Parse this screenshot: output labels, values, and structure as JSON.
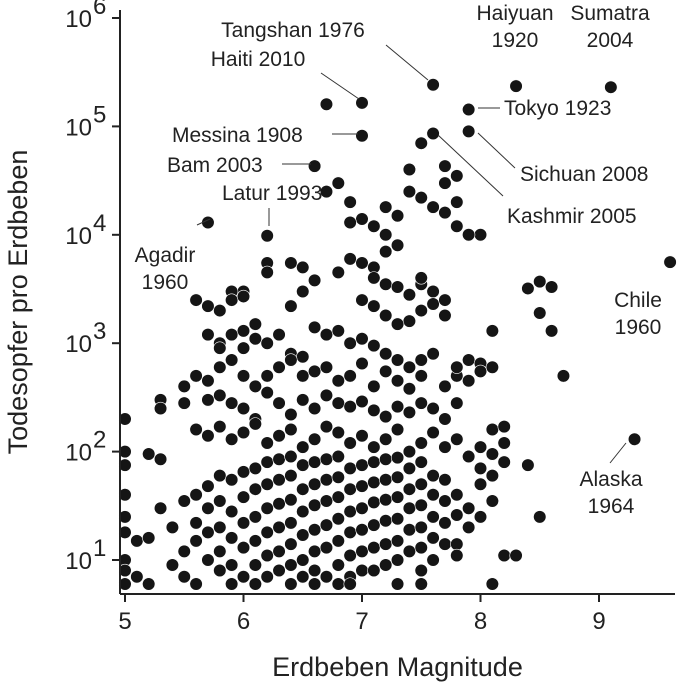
{
  "chart_data": {
    "type": "scatter",
    "xlabel": "Erdbeben Magnitude",
    "ylabel": "Todesopfer pro Erdbeben",
    "xlim": [
      4.97,
      9.62
    ],
    "ylim": [
      5,
      1000000
    ],
    "y_scale": "log",
    "grid": false,
    "x_ticks": [
      "5",
      "6",
      "7",
      "8",
      "9"
    ],
    "y_ticks": [
      {
        "base": "10",
        "exp": "1",
        "value": 10
      },
      {
        "base": "10",
        "exp": "2",
        "value": 100
      },
      {
        "base": "10",
        "exp": "3",
        "value": 1000
      },
      {
        "base": "10",
        "exp": "4",
        "value": 10000
      },
      {
        "base": "10",
        "exp": "5",
        "value": 100000
      },
      {
        "base": "10",
        "exp": "6",
        "value": 1000000
      }
    ],
    "annotations": [
      {
        "lines": [
          "Tangshan 1976"
        ],
        "x": 7.6,
        "y": 242000
      },
      {
        "lines": [
          "Haiyuan",
          "1920"
        ],
        "x": 8.3,
        "y": 235000
      },
      {
        "lines": [
          "Sumatra",
          "2004"
        ],
        "x": 9.1,
        "y": 230000
      },
      {
        "lines": [
          "Haiti 2010"
        ],
        "x": 7.0,
        "y": 160000
      },
      {
        "lines": [
          "Tokyo 1923"
        ],
        "x": 7.9,
        "y": 143000
      },
      {
        "lines": [
          "Messina 1908"
        ],
        "x": 7.0,
        "y": 82000
      },
      {
        "lines": [
          "Sichuan 2008"
        ],
        "x": 7.9,
        "y": 87000
      },
      {
        "lines": [
          "Bam 2003"
        ],
        "x": 6.6,
        "y": 43000
      },
      {
        "lines": [
          "Kashmir 2005"
        ],
        "x": 7.6,
        "y": 86000
      },
      {
        "lines": [
          "Latur 1993"
        ],
        "x": 6.2,
        "y": 9800
      },
      {
        "lines": [
          "Agadir",
          "1960"
        ],
        "x": 5.7,
        "y": 13000
      },
      {
        "lines": [
          "Chile",
          "1960"
        ],
        "x": 9.6,
        "y": 5600
      },
      {
        "lines": [
          "Alaska",
          "1964"
        ],
        "x": 9.3,
        "y": 130
      }
    ],
    "points": [
      [
        9.1,
        230000
      ],
      [
        8.3,
        235000
      ],
      [
        7.6,
        242000
      ],
      [
        7.0,
        165000
      ],
      [
        6.7,
        160000
      ],
      [
        7.9,
        143000
      ],
      [
        7.9,
        90000
      ],
      [
        7.6,
        86000
      ],
      [
        7.0,
        82000
      ],
      [
        6.6,
        43000
      ],
      [
        5.7,
        13000
      ],
      [
        6.2,
        9800
      ],
      [
        9.6,
        5600
      ],
      [
        9.3,
        130
      ],
      [
        7.5,
        70000
      ],
      [
        7.4,
        40000
      ],
      [
        7.7,
        43000
      ],
      [
        7.7,
        30000
      ],
      [
        7.8,
        35000
      ],
      [
        7.4,
        25000
      ],
      [
        7.5,
        22000
      ],
      [
        7.6,
        18000
      ],
      [
        7.7,
        16000
      ],
      [
        7.8,
        20000
      ],
      [
        6.8,
        30000
      ],
      [
        6.7,
        25000
      ],
      [
        6.9,
        20000
      ],
      [
        7.0,
        14000
      ],
      [
        6.9,
        13000
      ],
      [
        7.2,
        18000
      ],
      [
        7.3,
        15000
      ],
      [
        7.1,
        12000
      ],
      [
        7.2,
        10000
      ],
      [
        7.3,
        8000
      ],
      [
        7.2,
        7000
      ],
      [
        8.0,
        10000
      ],
      [
        7.9,
        10000
      ],
      [
        7.8,
        12000
      ],
      [
        6.9,
        6000
      ],
      [
        7.0,
        5500
      ],
      [
        7.1,
        5000
      ],
      [
        7.1,
        4000
      ],
      [
        7.2,
        3500
      ],
      [
        7.3,
        3300
      ],
      [
        7.4,
        2800
      ],
      [
        7.5,
        3500
      ],
      [
        7.5,
        4000
      ],
      [
        7.6,
        3000
      ],
      [
        7.6,
        2300
      ],
      [
        7.5,
        2000
      ],
      [
        7.4,
        1600
      ],
      [
        7.3,
        1500
      ],
      [
        7.2,
        1800
      ],
      [
        7.1,
        2200
      ],
      [
        7.0,
        2500
      ],
      [
        6.8,
        4500
      ],
      [
        6.6,
        3800
      ],
      [
        6.5,
        3000
      ],
      [
        6.4,
        2200
      ],
      [
        6.4,
        5500
      ],
      [
        6.5,
        5000
      ],
      [
        6.2,
        5500
      ],
      [
        6.2,
        4500
      ],
      [
        6.0,
        3000
      ],
      [
        5.9,
        3000
      ],
      [
        5.9,
        2500
      ],
      [
        6.0,
        2700
      ],
      [
        5.8,
        2000
      ],
      [
        5.7,
        2200
      ],
      [
        5.6,
        2500
      ],
      [
        7.7,
        1800
      ],
      [
        7.7,
        2500
      ],
      [
        8.1,
        1300
      ],
      [
        8.4,
        3200
      ],
      [
        8.5,
        3700
      ],
      [
        8.6,
        3300
      ],
      [
        8.5,
        1900
      ],
      [
        8.6,
        1300
      ],
      [
        8.7,
        500
      ],
      [
        6.1,
        1500
      ],
      [
        6.0,
        1300
      ],
      [
        5.9,
        1200
      ],
      [
        5.8,
        1000
      ],
      [
        5.7,
        1200
      ],
      [
        5.8,
        900
      ],
      [
        6.0,
        900
      ],
      [
        6.1,
        1100
      ],
      [
        6.2,
        1000
      ],
      [
        6.3,
        1200
      ],
      [
        6.4,
        800
      ],
      [
        6.5,
        750
      ],
      [
        6.6,
        1400
      ],
      [
        6.7,
        1200
      ],
      [
        6.8,
        1300
      ],
      [
        6.9,
        1000
      ],
      [
        7.0,
        1100
      ],
      [
        7.1,
        950
      ],
      [
        7.2,
        800
      ],
      [
        7.3,
        700
      ],
      [
        7.4,
        600
      ],
      [
        7.5,
        700
      ],
      [
        7.6,
        800
      ],
      [
        7.9,
        700
      ],
      [
        8.0,
        650
      ],
      [
        8.1,
        600
      ],
      [
        7.8,
        500
      ],
      [
        7.8,
        600
      ],
      [
        5.6,
        500
      ],
      [
        5.5,
        400
      ],
      [
        5.7,
        450
      ],
      [
        5.8,
        600
      ],
      [
        5.9,
        700
      ],
      [
        6.0,
        500
      ],
      [
        6.1,
        400
      ],
      [
        6.2,
        500
      ],
      [
        6.3,
        600
      ],
      [
        6.4,
        700
      ],
      [
        6.5,
        500
      ],
      [
        6.6,
        550
      ],
      [
        6.7,
        600
      ],
      [
        6.8,
        450
      ],
      [
        6.9,
        500
      ],
      [
        7.0,
        650
      ],
      [
        7.1,
        400
      ],
      [
        7.2,
        550
      ],
      [
        7.3,
        450
      ],
      [
        7.4,
        380
      ],
      [
        7.5,
        500
      ],
      [
        7.7,
        400
      ],
      [
        7.9,
        450
      ],
      [
        8.0,
        550
      ],
      [
        5.3,
        300
      ],
      [
        5.3,
        250
      ],
      [
        5.5,
        280
      ],
      [
        5.7,
        300
      ],
      [
        5.8,
        330
      ],
      [
        5.9,
        280
      ],
      [
        6.0,
        250
      ],
      [
        6.1,
        200
      ],
      [
        6.2,
        350
      ],
      [
        6.3,
        280
      ],
      [
        6.4,
        220
      ],
      [
        6.5,
        300
      ],
      [
        6.6,
        250
      ],
      [
        6.7,
        330
      ],
      [
        6.8,
        280
      ],
      [
        6.9,
        260
      ],
      [
        7.0,
        290
      ],
      [
        7.1,
        240
      ],
      [
        7.2,
        210
      ],
      [
        7.3,
        260
      ],
      [
        7.4,
        230
      ],
      [
        7.5,
        280
      ],
      [
        7.6,
        250
      ],
      [
        7.7,
        200
      ],
      [
        7.8,
        280
      ],
      [
        8.1,
        160
      ],
      [
        8.2,
        170
      ],
      [
        8.2,
        120
      ],
      [
        5.0,
        200
      ],
      [
        5.0,
        100
      ],
      [
        5.0,
        75
      ],
      [
        5.2,
        95
      ],
      [
        5.3,
        85
      ],
      [
        5.6,
        160
      ],
      [
        5.7,
        140
      ],
      [
        5.8,
        170
      ],
      [
        5.9,
        130
      ],
      [
        6.0,
        150
      ],
      [
        6.1,
        180
      ],
      [
        6.2,
        120
      ],
      [
        6.3,
        140
      ],
      [
        6.4,
        160
      ],
      [
        6.5,
        110
      ],
      [
        6.6,
        130
      ],
      [
        6.7,
        170
      ],
      [
        6.8,
        150
      ],
      [
        6.9,
        120
      ],
      [
        7.0,
        140
      ],
      [
        7.1,
        110
      ],
      [
        7.2,
        130
      ],
      [
        7.3,
        160
      ],
      [
        7.4,
        100
      ],
      [
        7.5,
        120
      ],
      [
        7.6,
        150
      ],
      [
        7.7,
        110
      ],
      [
        7.8,
        130
      ],
      [
        7.9,
        90
      ],
      [
        8.0,
        110
      ],
      [
        8.1,
        95
      ],
      [
        8.2,
        80
      ],
      [
        8.0,
        70
      ],
      [
        8.4,
        75
      ],
      [
        5.0,
        40
      ],
      [
        5.0,
        25
      ],
      [
        5.0,
        18
      ],
      [
        5.0,
        10
      ],
      [
        5.0,
        8
      ],
      [
        5.0,
        6
      ],
      [
        5.1,
        7
      ],
      [
        5.1,
        15
      ],
      [
        5.2,
        6
      ],
      [
        5.2,
        16
      ],
      [
        5.3,
        30
      ],
      [
        5.4,
        20
      ],
      [
        5.4,
        9
      ],
      [
        5.5,
        35
      ],
      [
        5.5,
        12
      ],
      [
        5.5,
        7
      ],
      [
        5.6,
        40
      ],
      [
        5.6,
        22
      ],
      [
        5.6,
        15
      ],
      [
        5.6,
        6
      ],
      [
        5.7,
        48
      ],
      [
        5.7,
        30
      ],
      [
        5.7,
        18
      ],
      [
        5.7,
        10
      ],
      [
        5.8,
        60
      ],
      [
        5.8,
        35
      ],
      [
        5.8,
        20
      ],
      [
        5.8,
        12
      ],
      [
        5.8,
        8
      ],
      [
        5.9,
        55
      ],
      [
        5.9,
        28
      ],
      [
        5.9,
        16
      ],
      [
        5.9,
        9
      ],
      [
        5.9,
        6
      ],
      [
        6.0,
        65
      ],
      [
        6.0,
        38
      ],
      [
        6.0,
        22
      ],
      [
        6.0,
        13
      ],
      [
        6.0,
        7
      ],
      [
        6.1,
        70
      ],
      [
        6.1,
        45
      ],
      [
        6.1,
        25
      ],
      [
        6.1,
        15
      ],
      [
        6.1,
        9
      ],
      [
        6.1,
        6
      ],
      [
        6.2,
        80
      ],
      [
        6.2,
        50
      ],
      [
        6.2,
        30
      ],
      [
        6.2,
        18
      ],
      [
        6.2,
        11
      ],
      [
        6.2,
        7
      ],
      [
        6.3,
        85
      ],
      [
        6.3,
        55
      ],
      [
        6.3,
        33
      ],
      [
        6.3,
        20
      ],
      [
        6.3,
        12
      ],
      [
        6.3,
        8
      ],
      [
        6.4,
        90
      ],
      [
        6.4,
        60
      ],
      [
        6.4,
        36
      ],
      [
        6.4,
        22
      ],
      [
        6.4,
        14
      ],
      [
        6.4,
        9
      ],
      [
        6.4,
        6
      ],
      [
        6.5,
        75
      ],
      [
        6.5,
        45
      ],
      [
        6.5,
        28
      ],
      [
        6.5,
        17
      ],
      [
        6.5,
        10
      ],
      [
        6.5,
        7
      ],
      [
        6.6,
        80
      ],
      [
        6.6,
        50
      ],
      [
        6.6,
        32
      ],
      [
        6.6,
        19
      ],
      [
        6.6,
        12
      ],
      [
        6.6,
        8
      ],
      [
        6.7,
        85
      ],
      [
        6.7,
        55
      ],
      [
        6.7,
        35
      ],
      [
        6.7,
        21
      ],
      [
        6.7,
        13
      ],
      [
        6.7,
        7
      ],
      [
        6.8,
        90
      ],
      [
        6.8,
        58
      ],
      [
        6.8,
        38
      ],
      [
        6.8,
        24
      ],
      [
        6.8,
        15
      ],
      [
        6.8,
        9
      ],
      [
        6.8,
        6
      ],
      [
        6.9,
        70
      ],
      [
        6.9,
        45
      ],
      [
        6.9,
        28
      ],
      [
        6.9,
        18
      ],
      [
        6.9,
        11
      ],
      [
        6.9,
        7
      ],
      [
        7.0,
        75
      ],
      [
        7.0,
        48
      ],
      [
        7.0,
        30
      ],
      [
        7.0,
        19
      ],
      [
        7.0,
        12
      ],
      [
        7.0,
        8
      ],
      [
        7.1,
        80
      ],
      [
        7.1,
        52
      ],
      [
        7.1,
        34
      ],
      [
        7.1,
        21
      ],
      [
        7.1,
        13
      ],
      [
        7.1,
        8
      ],
      [
        7.2,
        85
      ],
      [
        7.2,
        55
      ],
      [
        7.2,
        36
      ],
      [
        7.2,
        23
      ],
      [
        7.2,
        14
      ],
      [
        7.2,
        9
      ],
      [
        7.3,
        88
      ],
      [
        7.3,
        58
      ],
      [
        7.3,
        38
      ],
      [
        7.3,
        24
      ],
      [
        7.3,
        15
      ],
      [
        7.3,
        10
      ],
      [
        7.4,
        70
      ],
      [
        7.4,
        45
      ],
      [
        7.4,
        30
      ],
      [
        7.4,
        19
      ],
      [
        7.4,
        12
      ],
      [
        7.5,
        80
      ],
      [
        7.5,
        50
      ],
      [
        7.5,
        32
      ],
      [
        7.5,
        20
      ],
      [
        7.5,
        13
      ],
      [
        7.5,
        8
      ],
      [
        7.6,
        60
      ],
      [
        7.6,
        40
      ],
      [
        7.6,
        25
      ],
      [
        7.6,
        16
      ],
      [
        7.6,
        10
      ],
      [
        7.7,
        55
      ],
      [
        7.7,
        35
      ],
      [
        7.7,
        22
      ],
      [
        7.7,
        14
      ],
      [
        7.8,
        40
      ],
      [
        7.8,
        26
      ],
      [
        7.8,
        14
      ],
      [
        7.8,
        11
      ],
      [
        7.9,
        20
      ],
      [
        7.9,
        30
      ],
      [
        8.0,
        50
      ],
      [
        8.0,
        25
      ],
      [
        8.1,
        60
      ],
      [
        8.1,
        35
      ],
      [
        8.1,
        6
      ],
      [
        8.2,
        11
      ],
      [
        8.3,
        11
      ],
      [
        8.5,
        25
      ],
      [
        7.3,
        6
      ],
      [
        7.5,
        6
      ],
      [
        6.6,
        6
      ],
      [
        6.9,
        6
      ]
    ]
  }
}
